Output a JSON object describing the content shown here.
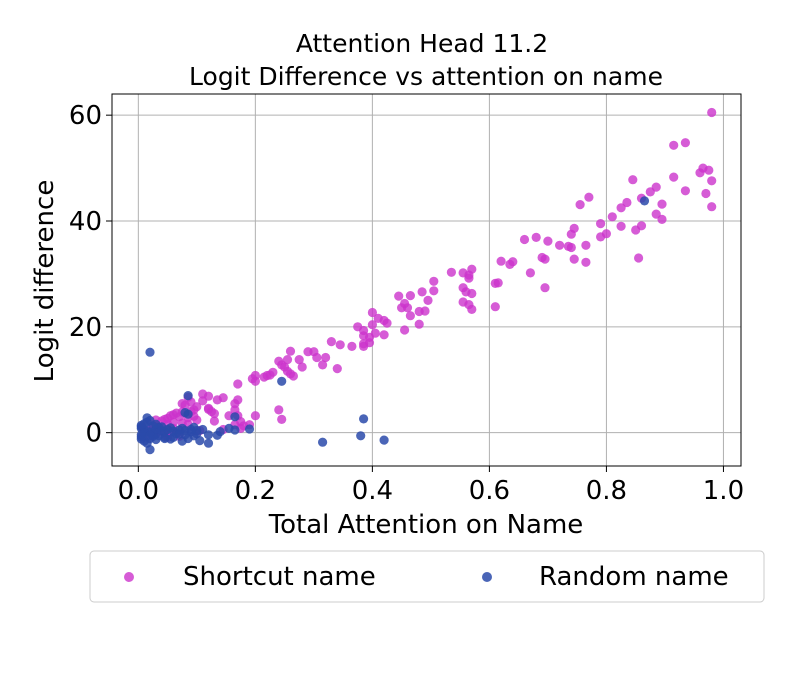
{
  "chart_data": {
    "type": "scatter",
    "title": [
      "Attention Head 11.2",
      "Logit Difference vs attention on name"
    ],
    "xlabel": "Total Attention on Name",
    "ylabel": "Logit difference",
    "xlim": [
      -0.045,
      1.03
    ],
    "ylim": [
      -6.3,
      64.0
    ],
    "xticks": [
      0.0,
      0.2,
      0.4,
      0.6,
      0.8,
      1.0
    ],
    "xtick_labels": [
      "0.0",
      "0.2",
      "0.4",
      "0.6",
      "0.8",
      "1.0"
    ],
    "yticks": [
      0,
      20,
      40,
      60
    ],
    "ytick_labels": [
      "0",
      "20",
      "40",
      "60"
    ],
    "grid": true,
    "legend_position": "below, two columns",
    "series": [
      {
        "name": "Shortcut name",
        "color": "#cc33cc",
        "points": [
          [
            0.98,
            60.5
          ],
          [
            0.935,
            54.8
          ],
          [
            0.915,
            54.3
          ],
          [
            0.965,
            50.0
          ],
          [
            0.975,
            49.6
          ],
          [
            0.96,
            49.1
          ],
          [
            0.915,
            48.3
          ],
          [
            0.98,
            47.6
          ],
          [
            0.845,
            47.8
          ],
          [
            0.885,
            46.4
          ],
          [
            0.875,
            45.5
          ],
          [
            0.935,
            45.7
          ],
          [
            0.97,
            45.2
          ],
          [
            0.86,
            44.3
          ],
          [
            0.895,
            43.2
          ],
          [
            0.835,
            43.5
          ],
          [
            0.98,
            42.7
          ],
          [
            0.825,
            42.5
          ],
          [
            0.885,
            41.3
          ],
          [
            0.895,
            40.3
          ],
          [
            0.81,
            40.8
          ],
          [
            0.79,
            39.5
          ],
          [
            0.77,
            44.5
          ],
          [
            0.755,
            43.1
          ],
          [
            0.745,
            38.6
          ],
          [
            0.74,
            37.5
          ],
          [
            0.8,
            37.6
          ],
          [
            0.79,
            37.0
          ],
          [
            0.825,
            39.0
          ],
          [
            0.85,
            38.3
          ],
          [
            0.86,
            39.1
          ],
          [
            0.72,
            35.4
          ],
          [
            0.765,
            35.4
          ],
          [
            0.74,
            35.0
          ],
          [
            0.735,
            35.2
          ],
          [
            0.68,
            36.9
          ],
          [
            0.66,
            36.5
          ],
          [
            0.7,
            36.2
          ],
          [
            0.745,
            32.8
          ],
          [
            0.765,
            32.2
          ],
          [
            0.855,
            33.0
          ],
          [
            0.69,
            33.1
          ],
          [
            0.695,
            32.8
          ],
          [
            0.64,
            32.3
          ],
          [
            0.635,
            31.8
          ],
          [
            0.67,
            30.2
          ],
          [
            0.62,
            32.4
          ],
          [
            0.695,
            27.4
          ],
          [
            0.57,
            30.9
          ],
          [
            0.565,
            29.8
          ],
          [
            0.555,
            30.2
          ],
          [
            0.535,
            30.3
          ],
          [
            0.565,
            29.2
          ],
          [
            0.615,
            28.3
          ],
          [
            0.61,
            28.2
          ],
          [
            0.505,
            28.6
          ],
          [
            0.555,
            27.4
          ],
          [
            0.57,
            26.3
          ],
          [
            0.56,
            26.6
          ],
          [
            0.505,
            26.8
          ],
          [
            0.485,
            26.6
          ],
          [
            0.465,
            25.9
          ],
          [
            0.445,
            25.8
          ],
          [
            0.495,
            25.0
          ],
          [
            0.455,
            24.4
          ],
          [
            0.555,
            24.7
          ],
          [
            0.565,
            24.2
          ],
          [
            0.61,
            23.8
          ],
          [
            0.57,
            23.3
          ],
          [
            0.46,
            23.6
          ],
          [
            0.45,
            23.6
          ],
          [
            0.49,
            23.0
          ],
          [
            0.48,
            22.9
          ],
          [
            0.465,
            22.1
          ],
          [
            0.4,
            22.7
          ],
          [
            0.42,
            21.2
          ],
          [
            0.41,
            21.6
          ],
          [
            0.425,
            20.7
          ],
          [
            0.4,
            20.4
          ],
          [
            0.48,
            20.5
          ],
          [
            0.375,
            20.0
          ],
          [
            0.385,
            19.3
          ],
          [
            0.405,
            18.8
          ],
          [
            0.385,
            18.3
          ],
          [
            0.42,
            18.5
          ],
          [
            0.395,
            18.0
          ],
          [
            0.455,
            19.4
          ],
          [
            0.395,
            17.0
          ],
          [
            0.385,
            16.8
          ],
          [
            0.385,
            16.3
          ],
          [
            0.33,
            17.2
          ],
          [
            0.345,
            16.6
          ],
          [
            0.365,
            16.3
          ],
          [
            0.3,
            15.3
          ],
          [
            0.29,
            15.3
          ],
          [
            0.26,
            15.4
          ],
          [
            0.305,
            14.2
          ],
          [
            0.32,
            14.2
          ],
          [
            0.275,
            13.8
          ],
          [
            0.255,
            13.8
          ],
          [
            0.24,
            13.5
          ],
          [
            0.245,
            12.8
          ],
          [
            0.25,
            12.4
          ],
          [
            0.28,
            12.4
          ],
          [
            0.315,
            12.8
          ],
          [
            0.255,
            11.6
          ],
          [
            0.26,
            11.1
          ],
          [
            0.23,
            11.4
          ],
          [
            0.225,
            10.9
          ],
          [
            0.22,
            10.8
          ],
          [
            0.215,
            10.5
          ],
          [
            0.2,
            10.8
          ],
          [
            0.195,
            10.2
          ],
          [
            0.34,
            12.1
          ],
          [
            0.265,
            10.7
          ],
          [
            0.2,
            9.7
          ],
          [
            0.17,
            9.2
          ],
          [
            0.085,
            6.7
          ],
          [
            0.11,
            7.3
          ],
          [
            0.12,
            6.9
          ],
          [
            0.145,
            6.6
          ],
          [
            0.135,
            6.2
          ],
          [
            0.11,
            6.0
          ],
          [
            0.09,
            5.8
          ],
          [
            0.075,
            5.5
          ],
          [
            0.08,
            5.2
          ],
          [
            0.1,
            4.9
          ],
          [
            0.12,
            4.6
          ],
          [
            0.095,
            4.3
          ],
          [
            0.09,
            4.0
          ],
          [
            0.075,
            3.9
          ],
          [
            0.065,
            3.7
          ],
          [
            0.06,
            3.4
          ],
          [
            0.055,
            3.2
          ],
          [
            0.07,
            3.0
          ],
          [
            0.085,
            2.8
          ],
          [
            0.05,
            2.7
          ],
          [
            0.045,
            2.5
          ],
          [
            0.03,
            2.4
          ],
          [
            0.04,
            2.2
          ],
          [
            0.06,
            2.0
          ],
          [
            0.075,
            1.8
          ],
          [
            0.05,
            1.6
          ],
          [
            0.03,
            1.4
          ],
          [
            0.025,
            1.2
          ],
          [
            0.04,
            1.0
          ],
          [
            0.06,
            0.8
          ],
          [
            0.03,
            0.6
          ],
          [
            0.02,
            0.5
          ],
          [
            0.035,
            0.3
          ],
          [
            0.055,
            0.1
          ],
          [
            0.045,
            -0.1
          ],
          [
            0.03,
            -0.3
          ],
          [
            0.015,
            -0.5
          ],
          [
            0.07,
            -0.7
          ],
          [
            0.05,
            -0.9
          ],
          [
            0.12,
            4.4
          ],
          [
            0.125,
            4.0
          ],
          [
            0.13,
            3.6
          ],
          [
            0.165,
            4.3
          ],
          [
            0.17,
            3.2
          ],
          [
            0.175,
            2.1
          ],
          [
            0.18,
            1.3
          ],
          [
            0.2,
            3.2
          ],
          [
            0.24,
            4.3
          ],
          [
            0.245,
            2.5
          ],
          [
            0.13,
            2.2
          ],
          [
            0.155,
            3.2
          ],
          [
            0.165,
            1.5
          ],
          [
            0.19,
            1.5
          ],
          [
            0.1,
            2.4
          ],
          [
            0.085,
            1.6
          ],
          [
            0.17,
            6.2
          ],
          [
            0.165,
            5.5
          ],
          [
            0.175,
            0.8
          ],
          [
            0.145,
            0.6
          ],
          [
            0.105,
            0.4
          ],
          [
            0.095,
            3.1
          ]
        ]
      },
      {
        "name": "Random name",
        "color": "#2a4aaa",
        "points": [
          [
            0.02,
            15.2
          ],
          [
            0.245,
            9.7
          ],
          [
            0.085,
            7.0
          ],
          [
            0.08,
            3.8
          ],
          [
            0.165,
            3.0
          ],
          [
            0.385,
            2.6
          ],
          [
            0.19,
            0.7
          ],
          [
            0.155,
            0.8
          ],
          [
            0.14,
            0.2
          ],
          [
            0.165,
            0.5
          ],
          [
            0.08,
            0.4
          ],
          [
            0.11,
            0.6
          ],
          [
            0.12,
            -0.4
          ],
          [
            0.095,
            -0.6
          ],
          [
            0.085,
            -1.1
          ],
          [
            0.075,
            -1.6
          ],
          [
            0.055,
            -1.2
          ],
          [
            0.045,
            -0.9
          ],
          [
            0.035,
            -0.6
          ],
          [
            0.03,
            -0.3
          ],
          [
            0.025,
            -0.1
          ],
          [
            0.02,
            0.1
          ],
          [
            0.015,
            0.3
          ],
          [
            0.01,
            0.5
          ],
          [
            0.005,
            0.8
          ],
          [
            0.005,
            1.1
          ],
          [
            0.005,
            1.4
          ],
          [
            0.01,
            1.7
          ],
          [
            0.015,
            2.0
          ],
          [
            0.02,
            2.3
          ],
          [
            0.015,
            2.8
          ],
          [
            0.005,
            -0.4
          ],
          [
            0.005,
            -0.8
          ],
          [
            0.005,
            -1.2
          ],
          [
            0.01,
            -1.6
          ],
          [
            0.015,
            -2.0
          ],
          [
            0.02,
            -1.1
          ],
          [
            0.025,
            -0.7
          ],
          [
            0.03,
            0.7
          ],
          [
            0.035,
            1.0
          ],
          [
            0.04,
            0.4
          ],
          [
            0.045,
            0.2
          ],
          [
            0.05,
            0.6
          ],
          [
            0.055,
            0.9
          ],
          [
            0.06,
            0.3
          ],
          [
            0.065,
            -0.2
          ],
          [
            0.07,
            0.5
          ],
          [
            0.075,
            0.8
          ],
          [
            0.09,
            0.2
          ],
          [
            0.095,
            1.0
          ],
          [
            0.1,
            -0.2
          ],
          [
            0.105,
            -1.5
          ],
          [
            0.12,
            -2.0
          ],
          [
            0.135,
            -0.5
          ],
          [
            0.02,
            -3.2
          ],
          [
            0.315,
            -1.8
          ],
          [
            0.38,
            -0.6
          ],
          [
            0.42,
            -1.4
          ],
          [
            0.865,
            43.8
          ],
          [
            0.085,
            3.5
          ],
          [
            0.025,
            1.3
          ],
          [
            0.03,
            1.6
          ],
          [
            0.04,
            1.1
          ],
          [
            0.01,
            0.0
          ],
          [
            0.02,
            -0.5
          ],
          [
            0.03,
            -1.3
          ],
          [
            0.045,
            -1.1
          ],
          [
            0.06,
            -0.9
          ],
          [
            0.07,
            -0.3
          ],
          [
            0.08,
            -0.4
          ],
          [
            0.09,
            0.6
          ],
          [
            0.1,
            0.4
          ]
        ]
      }
    ]
  }
}
